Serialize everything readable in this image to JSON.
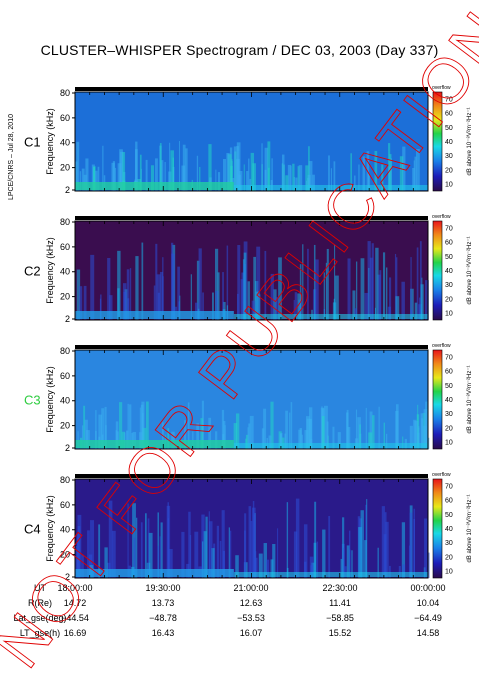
{
  "title": "CLUSTER–WHISPER Spectrogram / DEC 03, 2003 (Day 337)",
  "side_label": "LPCE/CNRS – Jul 28, 2010",
  "watermark": "NOT FOR PUBLICATION",
  "colors": {
    "c3_label": "#2ecc40",
    "axis": "#000000",
    "background_c1": "#1c6fd8",
    "background_c2": "#3a0d4f",
    "background_c3": "#2a86e0",
    "background_c4": "#2a1a8a",
    "watermark": "#e00000"
  },
  "chart_data": [
    {
      "type": "heatmap",
      "panel": "C1",
      "ylabel": "Frequency (kHz)",
      "yticks": [
        2,
        20,
        40,
        60,
        80
      ],
      "ylim": [
        2,
        80
      ],
      "colorbar_label": "dB above 10⁻⁸V²m⁻²Hz⁻¹",
      "colorbar_ticks": [
        10,
        20,
        30,
        40,
        50,
        60,
        70
      ],
      "colorbar_top_label": "overflow"
    },
    {
      "type": "heatmap",
      "panel": "C2",
      "ylabel": "Frequency (kHz)",
      "yticks": [
        2,
        20,
        40,
        60,
        80
      ],
      "ylim": [
        2,
        80
      ],
      "colorbar_label": "dB above 10⁻⁸V²m⁻²Hz⁻¹",
      "colorbar_ticks": [
        10,
        20,
        30,
        40,
        50,
        60,
        70
      ],
      "colorbar_top_label": "overflow"
    },
    {
      "type": "heatmap",
      "panel": "C3",
      "ylabel": "Frequency (kHz)",
      "yticks": [
        2,
        20,
        40,
        60,
        80
      ],
      "ylim": [
        2,
        80
      ],
      "colorbar_label": "dB above 10⁻⁸V²m⁻²Hz⁻¹",
      "colorbar_ticks": [
        10,
        20,
        30,
        40,
        50,
        60,
        70
      ],
      "colorbar_top_label": "overflow"
    },
    {
      "type": "heatmap",
      "panel": "C4",
      "ylabel": "Frequency (kHz)",
      "yticks": [
        2,
        20,
        40,
        60,
        80
      ],
      "ylim": [
        2,
        80
      ],
      "colorbar_label": "dB above 10⁻⁸V²m⁻²Hz⁻¹",
      "colorbar_ticks": [
        10,
        20,
        30,
        40,
        50,
        60,
        70
      ],
      "colorbar_top_label": "overflow"
    }
  ],
  "ephemeris": {
    "rows": [
      {
        "label": "UT",
        "values": [
          "18:00:00",
          "19:30:00",
          "21:00:00",
          "22:30:00",
          "00:00:00"
        ]
      },
      {
        "label": "R(Re)",
        "values": [
          "14.72",
          "13.73",
          "12.63",
          "11.41",
          "10.04"
        ]
      },
      {
        "label": "Lat_gse(deg)",
        "values": [
          "−44.54",
          "−48.78",
          "−53.53",
          "−58.85",
          "−64.49"
        ]
      },
      {
        "label": "LT_gse(h)",
        "values": [
          "16.69",
          "16.43",
          "16.07",
          "15.52",
          "14.58"
        ]
      }
    ]
  }
}
